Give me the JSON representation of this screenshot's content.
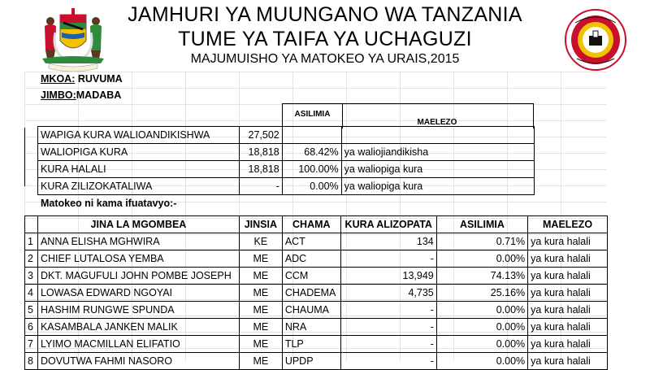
{
  "header": {
    "title1": "JAMHURI YA MUUNGANO WA TANZANIA",
    "title2": "TUME YA TAIFA YA UCHAGUZI",
    "title3": "MAJUMUISHO YA MATOKEO YA URAIS,2015",
    "emblem_motto": "UHURU NA UMOJA"
  },
  "location": {
    "mkoa_label": "MKOA:",
    "mkoa_value": "RUVUMA",
    "jimbo_label": "JIMBO:",
    "jimbo_value": "MADABA"
  },
  "summary": {
    "header_asilimia": "ASILIMIA",
    "header_maelezo": "MAELEZO",
    "rows": [
      {
        "label": "WAPIGA KURA WALIOANDIKISHWA",
        "value": "27,502",
        "percent": "",
        "note": ""
      },
      {
        "label": "WALIOPIGA KURA",
        "value": "18,818",
        "percent": "68.42%",
        "note": "ya waliojiandikisha"
      },
      {
        "label": "KURA HALALI",
        "value": "18,818",
        "percent": "100.00%",
        "note": "ya waliopiga kura"
      },
      {
        "label": "KURA ZILIZOKATALIWA",
        "value": "-",
        "percent": "0.00%",
        "note": "ya waliopiga kura"
      }
    ]
  },
  "results_intro": "Matokeo ni kama ifuatavyo:-",
  "results": {
    "headers": {
      "name": "JINA LA MGOMBEA",
      "gender": "JINSIA",
      "party": "CHAMA",
      "votes": "KURA ALIZOPATA",
      "percent": "ASILIMIA",
      "note": "MAELEZO"
    },
    "rows": [
      {
        "no": "1",
        "name": "ANNA ELISHA MGHWIRA",
        "gender": "KE",
        "party": "ACT",
        "votes": "134",
        "percent": "0.71%",
        "note": "ya kura halali"
      },
      {
        "no": "2",
        "name": "CHIEF LUTALOSA YEMBA",
        "gender": "ME",
        "party": "ADC",
        "votes": "-",
        "percent": "0.00%",
        "note": "ya kura halali"
      },
      {
        "no": "3",
        "name": "DKT. MAGUFULI JOHN POMBE JOSEPH",
        "gender": "ME",
        "party": "CCM",
        "votes": "13,949",
        "percent": "74.13%",
        "note": "ya kura halali"
      },
      {
        "no": "4",
        "name": "LOWASA EDWARD NGOYAI",
        "gender": "ME",
        "party": "CHADEMA",
        "votes": "4,735",
        "percent": "25.16%",
        "note": "ya kura halali"
      },
      {
        "no": "5",
        "name": "HASHIM RUNGWE SPUNDA",
        "gender": "ME",
        "party": "CHAUMA",
        "votes": "-",
        "percent": "0.00%",
        "note": "ya kura halali"
      },
      {
        "no": "6",
        "name": "KASAMBALA JANKEN MALIK",
        "gender": "ME",
        "party": "NRA",
        "votes": "-",
        "percent": "0.00%",
        "note": "ya kura halali"
      },
      {
        "no": "7",
        "name": "LYIMO MACMILLAN ELIFATIO",
        "gender": "ME",
        "party": "TLP",
        "votes": "-",
        "percent": "0.00%",
        "note": "ya kura halali"
      },
      {
        "no": "8",
        "name": "DOVUTWA FAHMI NASORO",
        "gender": "ME",
        "party": "UPDP",
        "votes": "-",
        "percent": "0.00%",
        "note": "ya kura halali"
      }
    ]
  },
  "colors": {
    "seal_red": "#c8102e",
    "seal_yellow": "#f2c200",
    "emblem_green": "#2e8b3d",
    "emblem_blue": "#1f5fa8",
    "grid_line": "#e2e2e2"
  }
}
